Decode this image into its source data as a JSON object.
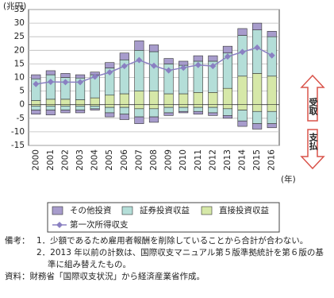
{
  "chart_data": {
    "type": "bar",
    "stacked": true,
    "y_unit": "(兆円)",
    "x_unit": "(年)",
    "categories": [
      "2000",
      "2001",
      "2002",
      "2003",
      "2004",
      "2005",
      "2006",
      "2007",
      "2008",
      "2009",
      "2010",
      "2011",
      "2012",
      "2013",
      "2014",
      "2015",
      "2016"
    ],
    "ylim": [
      -15,
      35
    ],
    "yticks": [
      -15,
      -10,
      -5,
      0,
      5,
      10,
      15,
      20,
      25,
      30,
      35
    ],
    "grid": true,
    "series": [
      {
        "name": "その他投資",
        "color": "#a79ccc",
        "values": [
          1.5,
          1.5,
          1.5,
          1.2,
          1,
          2,
          2.5,
          3.5,
          2.5,
          2,
          1.5,
          2,
          2,
          2.5,
          2.5,
          2.5,
          2
        ],
        "negative_values": [
          -1.5,
          -1.8,
          -1,
          -1,
          -0.5,
          -1.5,
          -2,
          -2.5,
          -2,
          -1,
          -0.5,
          -1,
          -1,
          -1,
          -2,
          -2,
          -1.5
        ]
      },
      {
        "name": "証券投資収益",
        "color": "#b4ded8",
        "values": [
          8,
          9,
          8,
          8,
          8.5,
          10,
          12.5,
          15,
          14.5,
          11,
          10.5,
          11.5,
          11.5,
          13,
          15,
          16,
          14.5
        ],
        "negative_values": [
          -1.5,
          -1.5,
          -1.5,
          -1.5,
          -1,
          -2,
          -2.5,
          -3,
          -3,
          -2,
          -1.5,
          -1.5,
          -2,
          -2.5,
          -4,
          -4.5,
          -4.5
        ]
      },
      {
        "name": "直接投資収益",
        "color": "#d6e8a8",
        "values": [
          1.5,
          2,
          2,
          1.8,
          2.5,
          3.5,
          4,
          5,
          5,
          4,
          4,
          4.5,
          4.5,
          6,
          10.5,
          11.5,
          10.5
        ],
        "negative_values": [
          -0.5,
          -0.5,
          -0.5,
          -0.5,
          -0.5,
          -1,
          -1,
          -1.5,
          -1.5,
          -1,
          -1,
          -1,
          -1,
          -1.5,
          -2,
          -2.5,
          -2.5
        ]
      },
      {
        "name": "第一次所得収支",
        "type": "line",
        "color": "#8a80c2",
        "values": [
          7.6,
          8.4,
          8.3,
          8.3,
          10.3,
          11.9,
          14.2,
          16.4,
          14.3,
          12.6,
          13.6,
          14.6,
          14.2,
          17.7,
          19.4,
          21.0,
          18.1
        ]
      }
    ],
    "annotations": [
      "受取",
      "支払"
    ]
  },
  "notes": {
    "label": "備考：",
    "items": [
      "1．少額であるため雇用者報酬を削除していることから合計が合わない。",
      "2．2013 年以前の計数は、国際収支マニュアル第５版準拠統計を第６版の基準に組み替えたもの。"
    ],
    "source": "資料：財務省「国際収支状況」から経済産業省作成。"
  }
}
